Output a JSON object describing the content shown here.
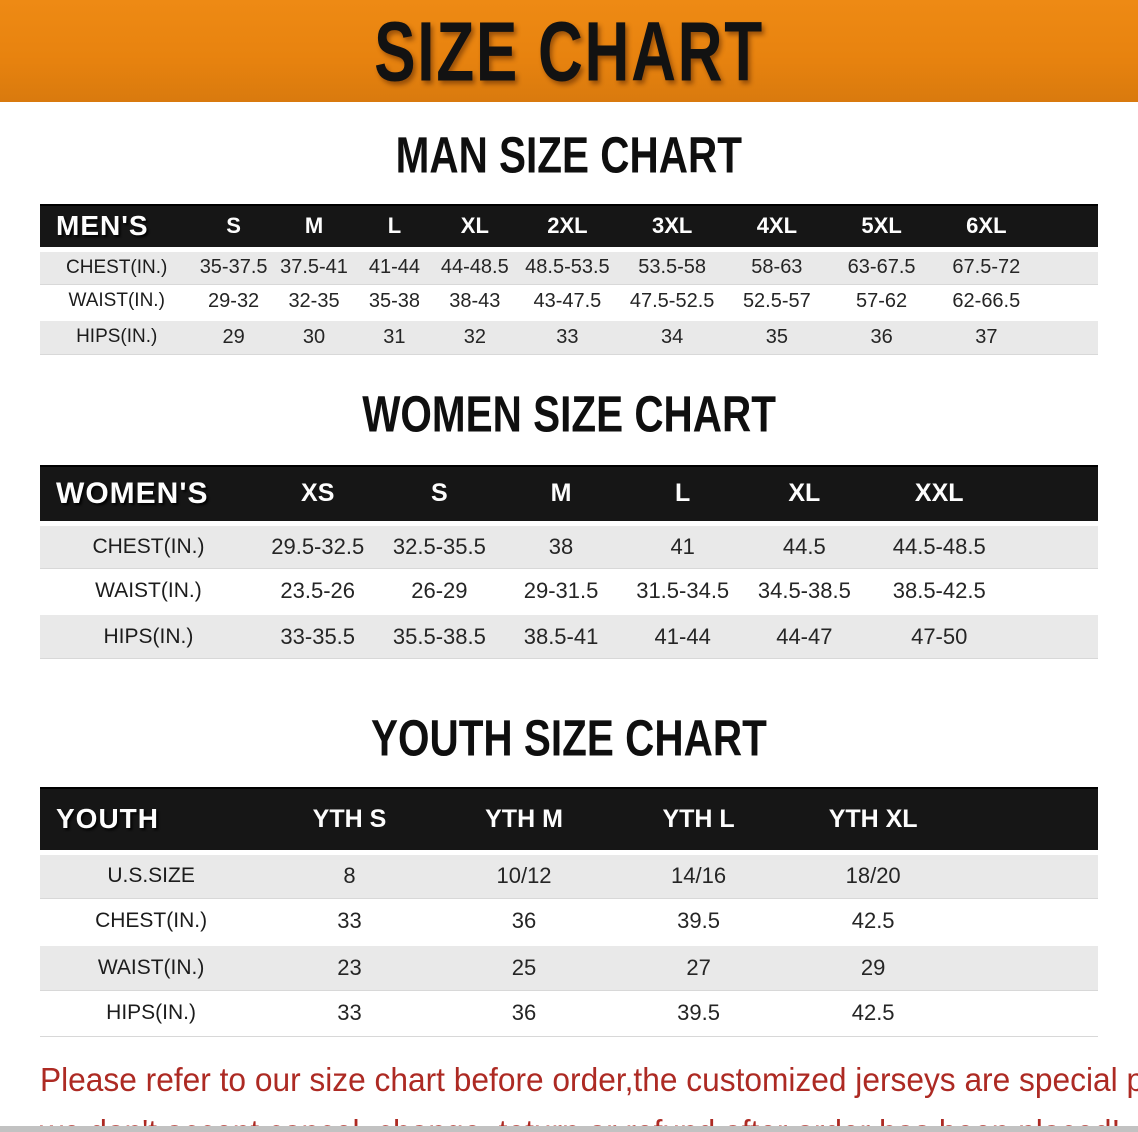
{
  "banner": {
    "title": "SIZE CHART"
  },
  "colors": {
    "banner_orange": "#E8830F",
    "table_header_black": "#161616",
    "stripe_gray": "#E9E9E9",
    "note_red": "#AD2A23"
  },
  "sections": [
    {
      "heading": "MAN SIZE CHART",
      "table": {
        "label": "MEN'S",
        "columns": [
          "S",
          "M",
          "L",
          "XL",
          "2XL",
          "3XL",
          "4XL",
          "5XL",
          "6XL"
        ],
        "rows": [
          {
            "label": "CHEST(IN.)",
            "values": [
              "35-37.5",
              "37.5-41",
              "41-44",
              "44-48.5",
              "48.5-53.5",
              "53.5-58",
              "58-63",
              "63-67.5",
              "67.5-72"
            ]
          },
          {
            "label": "WAIST(IN.)",
            "values": [
              "29-32",
              "32-35",
              "35-38",
              "38-43",
              "43-47.5",
              "47.5-52.5",
              "52.5-57",
              "57-62",
              "62-66.5"
            ]
          },
          {
            "label": "HIPS(IN.)",
            "values": [
              "29",
              "30",
              "31",
              "32",
              "33",
              "34",
              "35",
              "36",
              "37"
            ]
          }
        ]
      }
    },
    {
      "heading": "WOMEN SIZE CHART",
      "table": {
        "label": "WOMEN'S",
        "columns": [
          "XS",
          "S",
          "M",
          "L",
          "XL",
          "XXL"
        ],
        "rows": [
          {
            "label": "CHEST(IN.)",
            "values": [
              "29.5-32.5",
              "32.5-35.5",
              "38",
              "41",
              "44.5",
              "44.5-48.5"
            ]
          },
          {
            "label": "WAIST(IN.)",
            "values": [
              "23.5-26",
              "26-29",
              "29-31.5",
              "31.5-34.5",
              "34.5-38.5",
              "38.5-42.5"
            ]
          },
          {
            "label": "HIPS(IN.)",
            "values": [
              "33-35.5",
              "35.5-38.5",
              "38.5-41",
              "41-44",
              "44-47",
              "47-50"
            ]
          }
        ]
      }
    },
    {
      "heading": "YOUTH SIZE CHART",
      "table": {
        "label": "YOUTH",
        "columns": [
          "YTH S",
          "YTH M",
          "YTH L",
          "YTH XL"
        ],
        "rows": [
          {
            "label": "U.S.SIZE",
            "values": [
              "8",
              "10/12",
              "14/16",
              "18/20"
            ]
          },
          {
            "label": "CHEST(IN.)",
            "values": [
              "33",
              "36",
              "39.5",
              "42.5"
            ]
          },
          {
            "label": "WAIST(IN.)",
            "values": [
              "23",
              "25",
              "27",
              "29"
            ]
          },
          {
            "label": "HIPS(IN.)",
            "values": [
              "33",
              "36",
              "39.5",
              "42.5"
            ]
          }
        ]
      }
    }
  ],
  "note": {
    "lines": [
      "Please refer to our size chart before order,the customized jerseys are special products,",
      "we don't accept cancel, change, teturn or refund after order has been placed!"
    ]
  }
}
